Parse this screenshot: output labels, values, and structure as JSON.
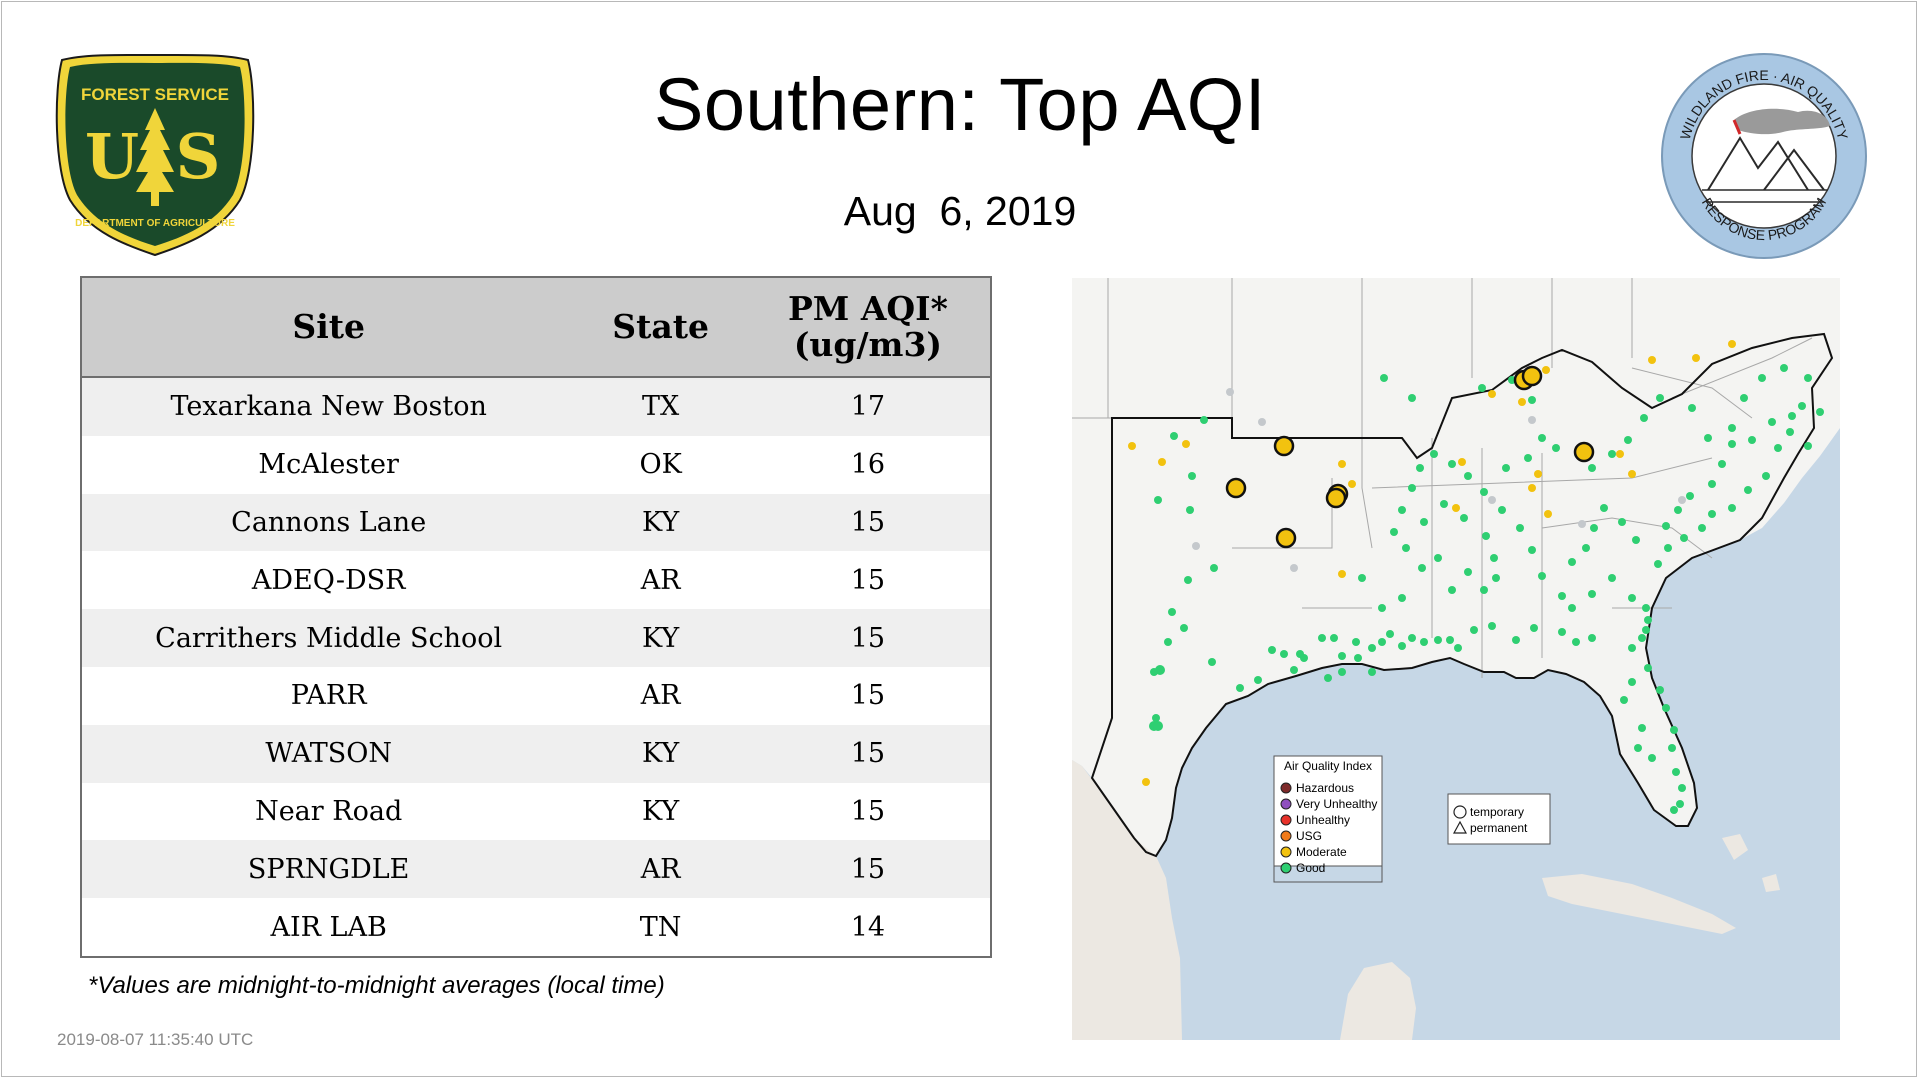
{
  "header": {
    "title": "Southern: Top AQI",
    "date": "Aug  6, 2019"
  },
  "logos": {
    "usfs": {
      "top_text": "FOREST SERVICE",
      "letters": "U S",
      "bottom_text": "DEPARTMENT OF AGRICULTURE"
    },
    "wfaq": {
      "top_text": "WILDLAND FIRE · AIR QUALITY",
      "bottom_text": "RESPONSE PROGRAM"
    }
  },
  "table": {
    "headers": {
      "site": "Site",
      "state": "State",
      "aqi_line1": "PM AQI*",
      "aqi_line2": "(ug/m3)"
    },
    "rows": [
      {
        "site": "Texarkana New Boston",
        "state": "TX",
        "aqi": "17"
      },
      {
        "site": "McAlester",
        "state": "OK",
        "aqi": "16"
      },
      {
        "site": "Cannons Lane",
        "state": "KY",
        "aqi": "15"
      },
      {
        "site": "ADEQ-DSR",
        "state": "AR",
        "aqi": "15"
      },
      {
        "site": "Carrithers Middle School",
        "state": "KY",
        "aqi": "15"
      },
      {
        "site": "PARR",
        "state": "AR",
        "aqi": "15"
      },
      {
        "site": "WATSON",
        "state": "KY",
        "aqi": "15"
      },
      {
        "site": "Near Road",
        "state": "KY",
        "aqi": "15"
      },
      {
        "site": "SPRNGDLE",
        "state": "AR",
        "aqi": "15"
      },
      {
        "site": "AIR LAB",
        "state": "TN",
        "aqi": "14"
      }
    ]
  },
  "footnote": "*Values are midnight-to-midnight averages (local time)",
  "timestamp": "2019-08-07 11:35:40 UTC",
  "map": {
    "legend": {
      "title": "Air Quality Index",
      "items": [
        {
          "label": "Hazardous",
          "color": "#7e2a2a"
        },
        {
          "label": "Very Unhealthy",
          "color": "#8f4fbf"
        },
        {
          "label": "Unhealthy",
          "color": "#e8322a"
        },
        {
          "label": "USG",
          "color": "#f07a1a"
        },
        {
          "label": "Moderate",
          "color": "#f2c20f"
        },
        {
          "label": "Good",
          "color": "#2fcf72"
        }
      ]
    },
    "shape_legend": {
      "temporary": "temporary",
      "permanent": "permanent"
    },
    "colors": {
      "ocean": "#c6d7e6",
      "land": "#f4f4f2",
      "good": "#2fcf72",
      "moderate": "#f2c20f",
      "nodata": "#c4c8cc"
    }
  }
}
